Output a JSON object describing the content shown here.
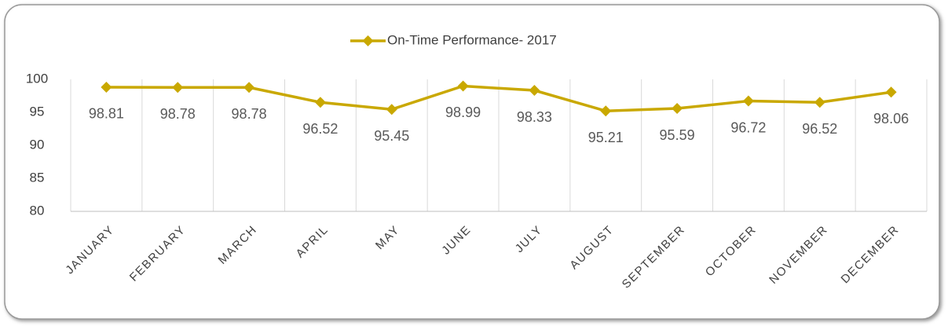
{
  "chart_data": {
    "type": "line",
    "categories": [
      "JANUARY",
      "FEBRUARY",
      "MARCH",
      "APRIL",
      "MAY",
      "JUNE",
      "JULY",
      "AUGUST",
      "SEPTEMBER",
      "OCTOBER",
      "NOVEMBER",
      "DECEMBER"
    ],
    "series": [
      {
        "name": "On-Time Performance- 2017",
        "color": "#c9a800",
        "values": [
          98.81,
          98.78,
          98.78,
          96.52,
          95.45,
          98.99,
          98.33,
          95.21,
          95.59,
          96.72,
          96.52,
          98.06
        ]
      }
    ],
    "ylim": [
      80,
      100
    ],
    "yticks": [
      80,
      85,
      90,
      95,
      100
    ],
    "legend": "top",
    "grid": false
  }
}
